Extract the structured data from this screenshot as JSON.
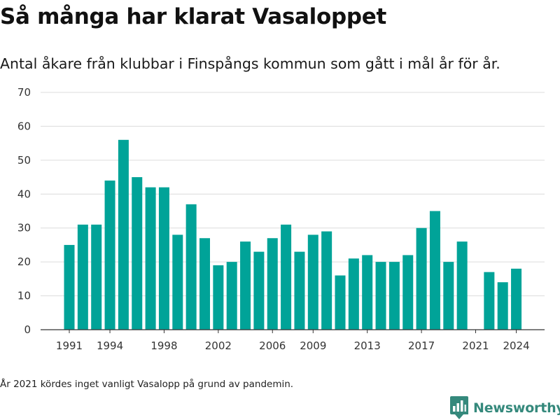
{
  "header": {
    "title": "Så många har klarat Vasaloppet",
    "subtitle": "Antal åkare från klubbar i Finspångs kommun som gått i mål år för år."
  },
  "footer": {
    "note": "År 2021 kördes inget vanligt Vasalopp på grund av pandemin.",
    "brand": "Newsworthy",
    "brand_icon": "newsworthy-logo-icon",
    "brand_color": "#35897c"
  },
  "chart_data": {
    "type": "bar",
    "title": "Så många har klarat Vasaloppet",
    "subtitle": "Antal åkare från klubbar i Finspångs kommun som gått i mål år för år.",
    "x": [
      1991,
      1992,
      1993,
      1994,
      1995,
      1996,
      1997,
      1998,
      1999,
      2000,
      2001,
      2002,
      2003,
      2004,
      2005,
      2006,
      2007,
      2008,
      2009,
      2010,
      2011,
      2012,
      2013,
      2014,
      2015,
      2016,
      2017,
      2018,
      2019,
      2020,
      2021,
      2022,
      2023,
      2024
    ],
    "values": [
      25,
      31,
      31,
      44,
      56,
      45,
      42,
      42,
      28,
      37,
      27,
      19,
      20,
      26,
      23,
      27,
      31,
      23,
      28,
      29,
      16,
      21,
      22,
      20,
      20,
      22,
      30,
      35,
      20,
      26,
      0,
      17,
      14,
      18
    ],
    "xticks": [
      "1991",
      "1994",
      "1998",
      "2002",
      "2006",
      "2009",
      "2013",
      "2017",
      "2021",
      "2024"
    ],
    "yticks": [
      "0",
      "10",
      "20",
      "30",
      "40",
      "50",
      "60",
      "70"
    ],
    "ylim": [
      0,
      70
    ],
    "xlabel": "",
    "ylabel": "",
    "grid": true,
    "legend": "none",
    "bar_color": "#00a398",
    "grid_color": "#dcdcdc",
    "axis_color": "#333333"
  }
}
